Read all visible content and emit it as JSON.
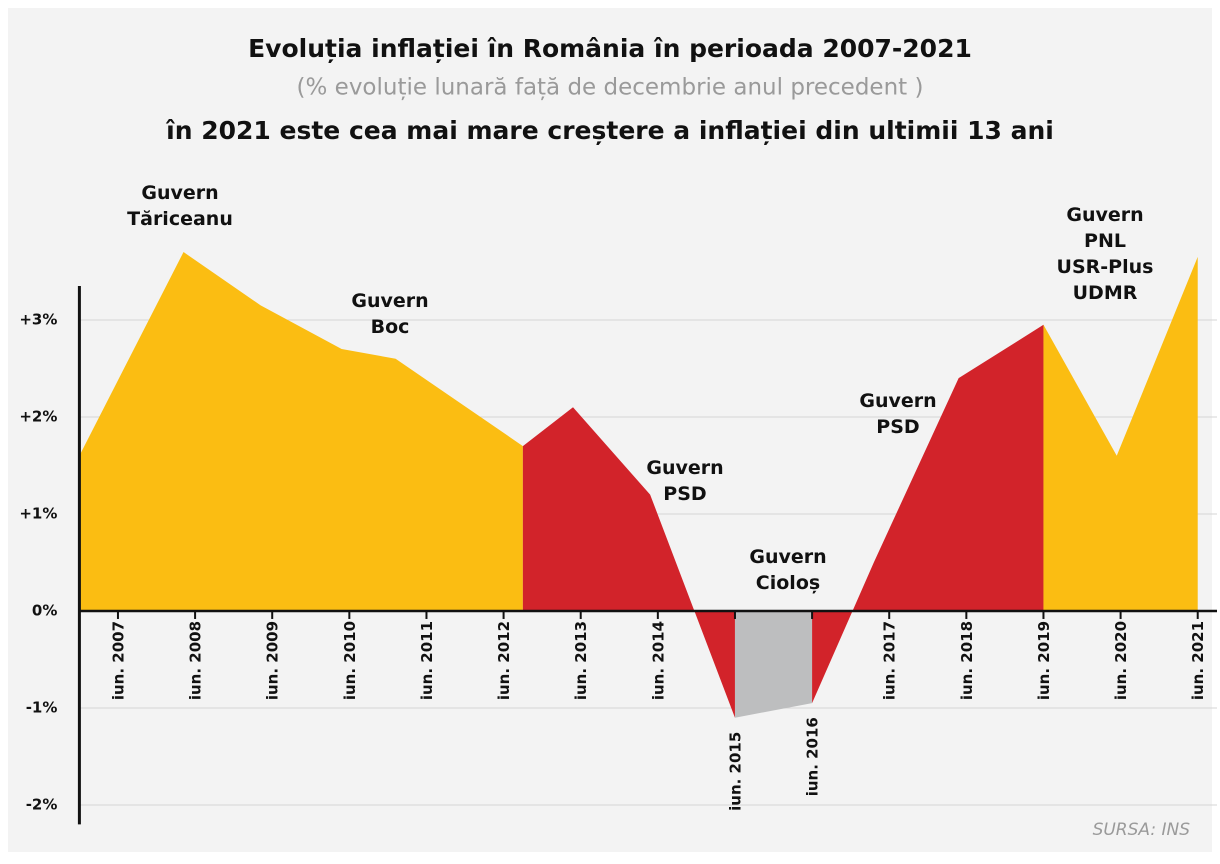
{
  "chart_data": {
    "type": "area",
    "title": "Evoluția inflației în România în perioada 2007-2021",
    "subtitle": "(% evoluție lunară față de decembrie anul precedent )",
    "headline": "în 2021 este cea mai mare creștere a inflației din ultimii 13 ani",
    "source": "SURSA: INS",
    "segments": [
      {
        "color": "#fbbd12",
        "x": [
          2007.0,
          2008.35,
          2009.35,
          2010.4,
          2011.1,
          2012.75
        ],
        "values": [
          1.6,
          3.7,
          3.15,
          2.7,
          2.6,
          1.7
        ]
      },
      {
        "color": "#d2232a",
        "x": [
          2012.75,
          2013.4,
          2014.4,
          2015.5
        ],
        "values": [
          1.7,
          2.1,
          1.2,
          -1.1
        ]
      },
      {
        "color": "#bdbebf",
        "x": [
          2015.5,
          2016.5
        ],
        "values": [
          -1.1,
          -0.95
        ]
      },
      {
        "color": "#d2232a",
        "x": [
          2016.5,
          2017.3,
          2018.4,
          2019.5
        ],
        "values": [
          -0.95,
          0.5,
          2.4,
          2.95
        ]
      },
      {
        "color": "#fbbd12",
        "x": [
          2019.5,
          2020.45,
          2021.5
        ],
        "values": [
          2.95,
          1.6,
          3.65
        ]
      }
    ],
    "annotations": [
      [
        "Guvern",
        "Tăriceanu"
      ],
      [
        "Guvern",
        "Boc"
      ],
      [
        "Guvern",
        "PSD"
      ],
      [
        "Guvern",
        "Cioloș"
      ],
      [
        "Guvern",
        "PSD"
      ],
      [
        "Guvern",
        "PNL",
        "USR-Plus",
        "UDMR"
      ]
    ],
    "xlim": [
      2007.0,
      2021.75
    ],
    "xticks": [
      {
        "value": 2007.5,
        "label": "iun. 2007"
      },
      {
        "value": 2008.5,
        "label": "iun. 2008"
      },
      {
        "value": 2009.5,
        "label": "iun. 2009"
      },
      {
        "value": 2010.5,
        "label": "iun. 2010"
      },
      {
        "value": 2011.5,
        "label": "iun. 2011"
      },
      {
        "value": 2012.5,
        "label": "iun. 2012"
      },
      {
        "value": 2013.5,
        "label": "iun. 2013"
      },
      {
        "value": 2014.5,
        "label": "iun. 2014"
      },
      {
        "value": 2015.5,
        "label": "iun. 2015"
      },
      {
        "value": 2016.5,
        "label": "iun. 2016"
      },
      {
        "value": 2017.5,
        "label": "iun. 2017"
      },
      {
        "value": 2018.5,
        "label": "iun. 2018"
      },
      {
        "value": 2019.5,
        "label": "iun. 2019"
      },
      {
        "value": 2020.5,
        "label": "iun. 2020"
      },
      {
        "value": 2021.5,
        "label": "iun. 2021"
      }
    ],
    "ylim": [
      -2.2,
      3.35
    ],
    "yticks": [
      {
        "value": 3,
        "label": "+3%"
      },
      {
        "value": 2,
        "label": "+2%"
      },
      {
        "value": 1,
        "label": "+1%"
      },
      {
        "value": 0,
        "label": "0%"
      },
      {
        "value": -1,
        "label": "-1%"
      },
      {
        "value": -2,
        "label": "-2%"
      }
    ],
    "grid": true
  }
}
